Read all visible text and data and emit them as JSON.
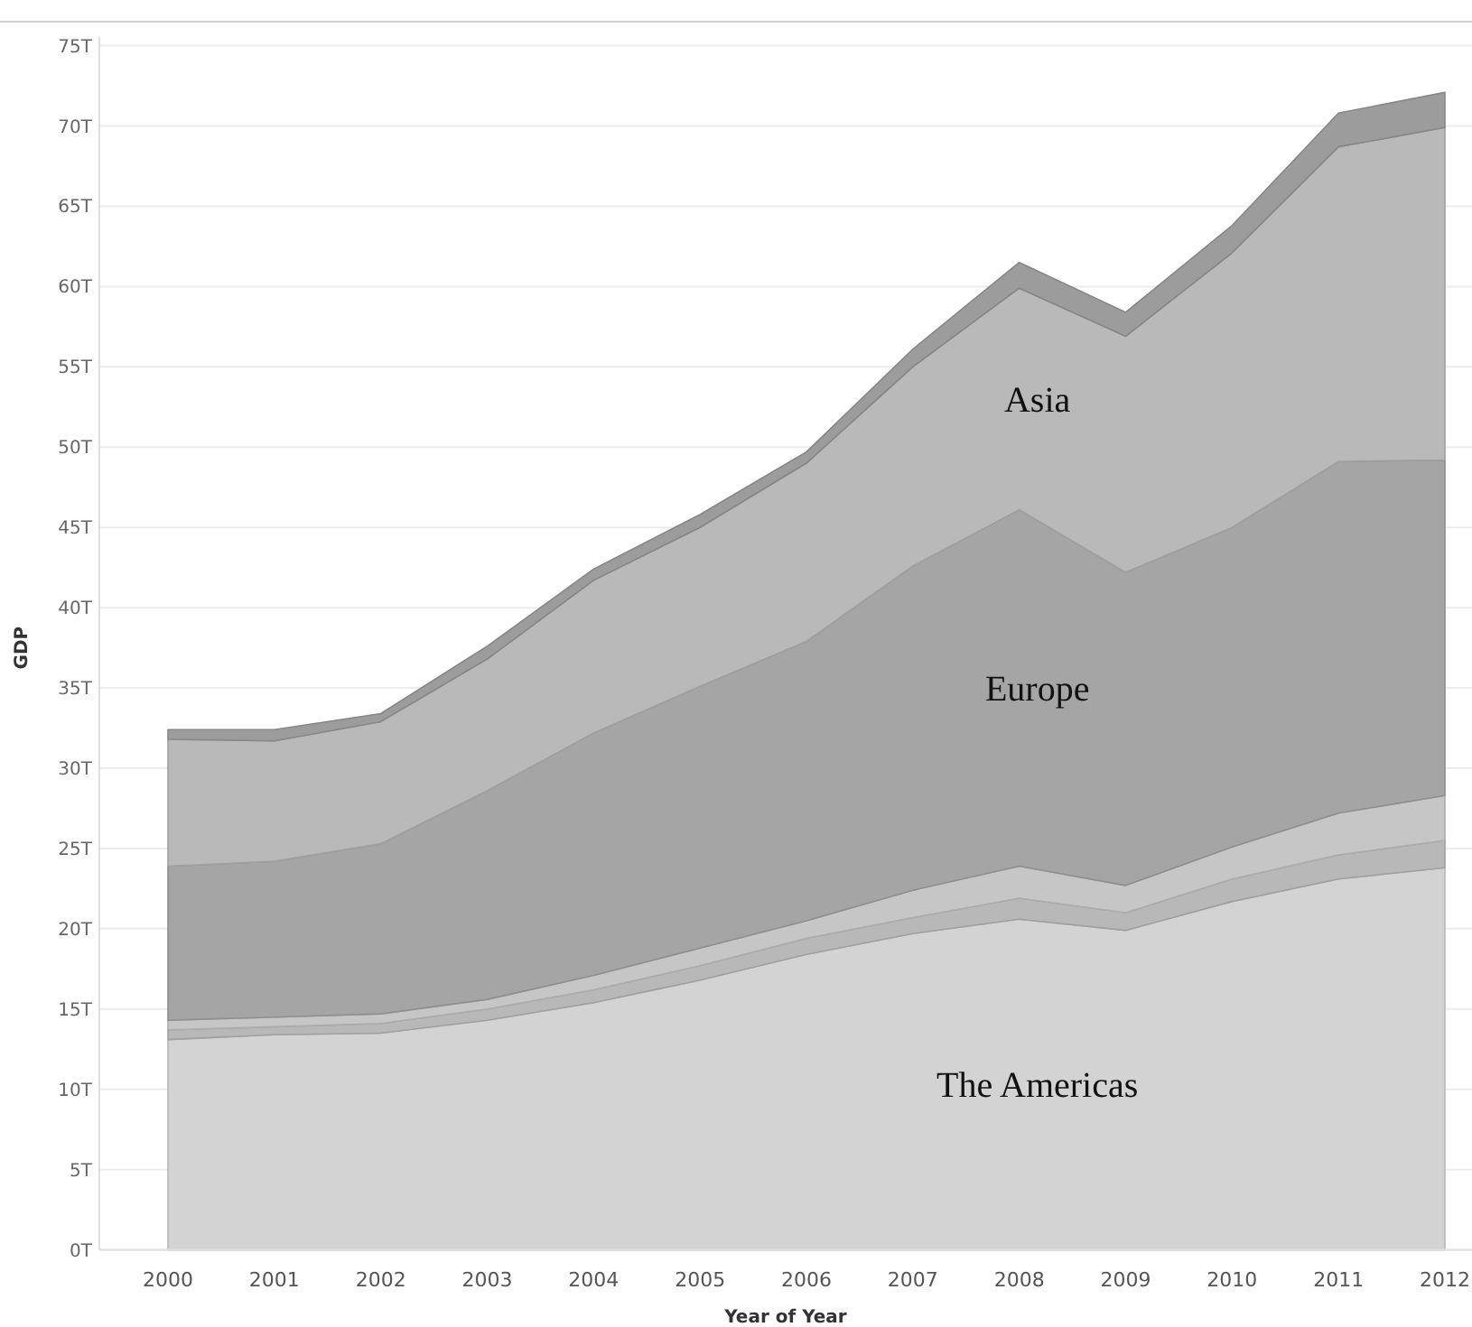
{
  "chart_data": {
    "type": "area",
    "stacked": true,
    "xlabel": "Year of Year",
    "ylabel": "GDP",
    "categories": [
      "2000",
      "2001",
      "2002",
      "2003",
      "2004",
      "2005",
      "2006",
      "2007",
      "2008",
      "2009",
      "2010",
      "2011",
      "2012"
    ],
    "series": [
      {
        "name": "The Americas",
        "color": "#d3d3d3",
        "values": [
          13.1,
          13.4,
          13.5,
          14.3,
          15.4,
          16.8,
          18.4,
          19.7,
          20.6,
          19.9,
          21.7,
          23.1,
          23.8
        ]
      },
      {
        "color": "#b8b8b8",
        "values": [
          0.6,
          0.5,
          0.6,
          0.7,
          0.8,
          0.9,
          1.0,
          1.0,
          1.3,
          1.1,
          1.4,
          1.5,
          1.7
        ]
      },
      {
        "color": "#c6c6c6",
        "values": [
          0.6,
          0.6,
          0.6,
          0.6,
          0.9,
          1.1,
          1.1,
          1.7,
          2.0,
          1.7,
          2.0,
          2.6,
          2.8
        ]
      },
      {
        "name": "Europe",
        "color": "#a5a5a5",
        "values": [
          9.6,
          9.7,
          10.6,
          13.0,
          15.1,
          16.3,
          17.4,
          20.2,
          22.2,
          19.5,
          19.9,
          21.9,
          20.9
        ]
      },
      {
        "name": "Asia",
        "color": "#b9b9b9",
        "values": [
          7.9,
          7.5,
          7.6,
          8.2,
          9.5,
          9.9,
          11.1,
          12.4,
          13.8,
          14.7,
          17.1,
          19.6,
          20.7
        ]
      },
      {
        "color": "#9c9c9c",
        "values": [
          0.6,
          0.7,
          0.5,
          0.8,
          0.7,
          0.8,
          0.7,
          1.1,
          1.6,
          1.5,
          1.7,
          2.1,
          2.2
        ]
      }
    ],
    "ylim": [
      0,
      75
    ],
    "yticks": [
      {
        "value": 0,
        "label": "0T"
      },
      {
        "value": 5,
        "label": "5T"
      },
      {
        "value": 10,
        "label": "10T"
      },
      {
        "value": 15,
        "label": "15T"
      },
      {
        "value": 20,
        "label": "20T"
      },
      {
        "value": 25,
        "label": "25T"
      },
      {
        "value": 30,
        "label": "30T"
      },
      {
        "value": 35,
        "label": "35T"
      },
      {
        "value": 40,
        "label": "40T"
      },
      {
        "value": 45,
        "label": "45T"
      },
      {
        "value": 50,
        "label": "50T"
      },
      {
        "value": 55,
        "label": "55T"
      },
      {
        "value": 60,
        "label": "60T"
      },
      {
        "value": 65,
        "label": "65T"
      },
      {
        "value": 70,
        "label": "70T"
      },
      {
        "value": 75,
        "label": "75T"
      }
    ],
    "grid": "y"
  }
}
